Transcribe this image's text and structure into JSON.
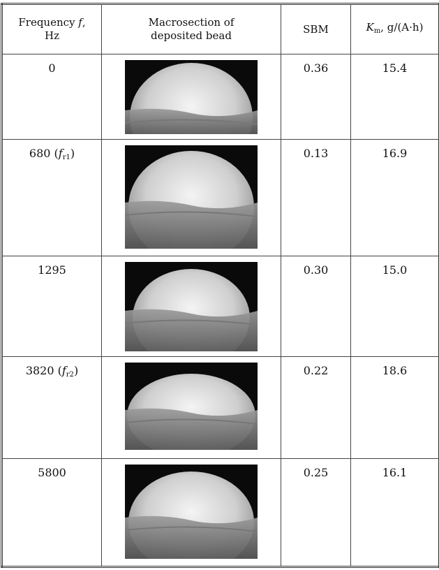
{
  "table": {
    "header": [
      [
        {
          "text": "Frequency "
        },
        {
          "text": "f",
          "style": "italic"
        },
        {
          "text": ","
        },
        {
          "text": "Hz",
          "style": "break"
        }
      ],
      [
        {
          "text": "Macrosection of"
        },
        {
          "text": "deposited bead",
          "style": "break"
        }
      ],
      [
        {
          "text": "SBM"
        }
      ],
      [
        {
          "text": "K",
          "style": "italic"
        },
        {
          "text": "m",
          "style": "sub"
        },
        {
          "text": ", g/(A·h)"
        }
      ]
    ],
    "rows": [
      {
        "frequency": [
          {
            "text": "0"
          }
        ],
        "sbm": "0.36",
        "km": "15.4"
      },
      {
        "frequency": [
          {
            "text": "680 ("
          },
          {
            "text": "f",
            "style": "italic"
          },
          {
            "text": "r1",
            "style": "sub"
          },
          {
            "text": ")"
          }
        ],
        "sbm": "0.13",
        "km": "16.9"
      },
      {
        "frequency": [
          {
            "text": "1295"
          }
        ],
        "sbm": "0.30",
        "km": "15.0"
      },
      {
        "frequency": [
          {
            "text": "3820 ("
          },
          {
            "text": "f",
            "style": "italic"
          },
          {
            "text": "r2",
            "style": "sub"
          },
          {
            "text": ")"
          }
        ],
        "sbm": "0.22",
        "km": "18.6"
      },
      {
        "frequency": [
          {
            "text": "5800"
          }
        ],
        "sbm": "0.25",
        "km": "16.1"
      }
    ]
  }
}
